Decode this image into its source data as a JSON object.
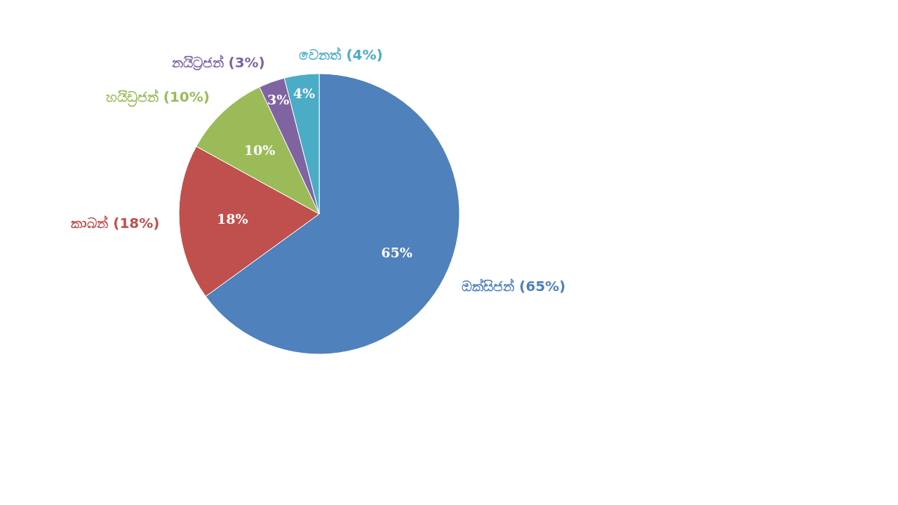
{
  "chart_data": {
    "type": "pie",
    "categories": [
      "ඔක්සිජන් (65%)",
      "කාබන් (18%)",
      "හයිඩ්‍රජන් (10%)",
      "නයිට්‍රජන් (3%)",
      "වෙනත් (4%)"
    ],
    "values": [
      65,
      18,
      10,
      3,
      4
    ],
    "value_labels": [
      "65%",
      "18%",
      "10%",
      "3%",
      "4%"
    ],
    "colors": [
      "#4f81bd",
      "#c0504d",
      "#9bbb59",
      "#8064a2",
      "#4bacc6"
    ],
    "legend": false
  }
}
